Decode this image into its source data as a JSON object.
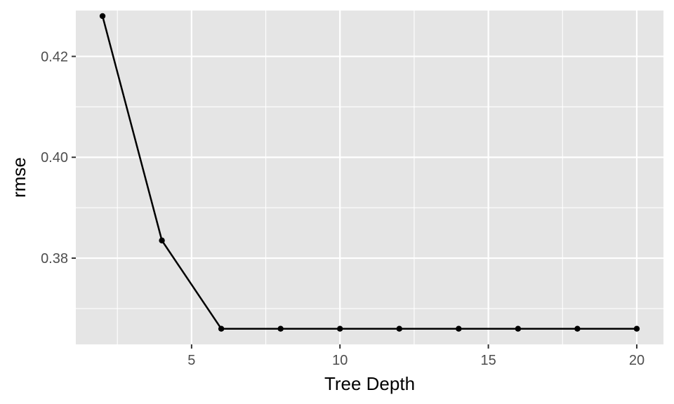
{
  "chart_data": {
    "type": "line",
    "title": "",
    "xlabel": "Tree Depth",
    "ylabel": "rmse",
    "x": [
      2,
      4,
      6,
      8,
      10,
      12,
      14,
      16,
      18,
      20
    ],
    "series": [
      {
        "values": [
          0.428,
          0.3835,
          0.366,
          0.366,
          0.366,
          0.366,
          0.366,
          0.366,
          0.366,
          0.366
        ]
      }
    ],
    "xlim": [
      1.1,
      20.9
    ],
    "ylim": [
      0.3629,
      0.4291
    ],
    "x_ticks": [
      5,
      10,
      15,
      20
    ],
    "x_tick_labels": [
      "5",
      "10",
      "15",
      "20"
    ],
    "x_minor_ticks": [
      2.5,
      7.5,
      12.5,
      17.5
    ],
    "y_ticks": [
      0.38,
      0.4,
      0.42
    ],
    "y_tick_labels": [
      "0.38",
      "0.40",
      "0.42"
    ],
    "y_minor_ticks": [
      0.37,
      0.39,
      0.41
    ],
    "grid": true,
    "panel_background": "#e5e5e5",
    "grid_color": "#ffffff",
    "line_color": "#000000",
    "point_color": "#000000",
    "legend": "none"
  }
}
